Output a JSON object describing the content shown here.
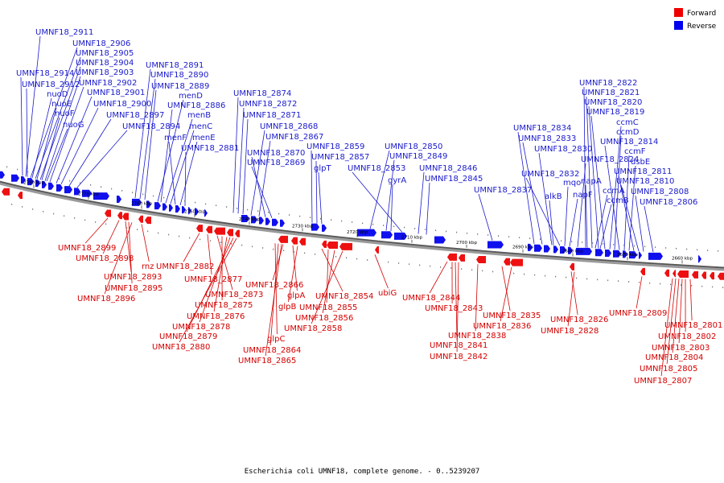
{
  "caption": "Escherichia coli UMNF18, complete genome. - 0..5239207",
  "legend": [
    {
      "label": "Forward",
      "color": "#ee0000"
    },
    {
      "label": "Reverse",
      "color": "#0000ee"
    }
  ],
  "ticks": [
    "2780 kbp",
    "2770 kbp",
    "2760 kbp",
    "2750 kbp",
    "2740 kbp",
    "2730 kbp",
    "2720 kbp",
    "2710 kbp",
    "2700 kbp",
    "2690 kbp",
    "2680 kbp",
    "2670 kbp",
    "2660 kbp"
  ],
  "reverse_labels": [
    "UMNF18_2911",
    "UMNF18_2906",
    "UMNF18_2905",
    "UMNF18_2904",
    "UMNF18_2914",
    "UMNF18_2903",
    "UMNF18_2912",
    "UMNF18_2902",
    "nuoD",
    "UMNF18_2901",
    "nuoE",
    "UMNF18_2900",
    "nuoF",
    "UMNF18_2897",
    "nuoG",
    "UMNF18_2894",
    "UMNF18_2891",
    "UMNF18_2890",
    "UMNF18_2889",
    "menD",
    "UMNF18_2886",
    "menB",
    "menC",
    "menF",
    "menE",
    "UMNF18_2881",
    "UMNF18_2874",
    "UMNF18_2872",
    "UMNF18_2871",
    "UMNF18_2868",
    "UMNF18_2867",
    "UMNF18_2870",
    "UMNF18_2869",
    "UMNF18_2859",
    "UMNF18_2857",
    "glpT",
    "UMNF18_2850",
    "UMNF18_2849",
    "UMNF18_2853",
    "gyrA",
    "UMNF18_2846",
    "UMNF18_2845",
    "UMNF18_2837",
    "UMNF18_2834",
    "UMNF18_2833",
    "UMNF18_2830",
    "UMNF18_2832",
    "alkB",
    "mqo",
    "napF",
    "UMNF18_2824",
    "napA",
    "ccmA",
    "ccmB",
    "UMNF18_2822",
    "UMNF18_2821",
    "UMNF18_2820",
    "UMNF18_2819",
    "ccmC",
    "ccmD",
    "UMNF18_2814",
    "ccmF",
    "dsbE",
    "UMNF18_2811",
    "UMNF18_2810",
    "UMNF18_2808",
    "UMNF18_2806"
  ],
  "forward_labels": [
    "UMNF18_2899",
    "UMNF18_2898",
    "UMNF18_2893",
    "rnz",
    "UMNF18_2895",
    "UMNF18_2896",
    "UMNF18_2882",
    "UMNF18_2877",
    "UMNF18_2873",
    "UMNF18_2875",
    "UMNF18_2876",
    "UMNF18_2878",
    "UMNF18_2879",
    "UMNF18_2880",
    "UMNF18_2866",
    "glpA",
    "glpB",
    "glpC",
    "UMNF18_2864",
    "UMNF18_2865",
    "UMNF18_2854",
    "UMNF18_2855",
    "UMNF18_2856",
    "UMNF18_2858",
    "ubiG",
    "UMNF18_2844",
    "UMNF18_2843",
    "UMNF18_2841",
    "UMNF18_2842",
    "UMNF18_2838",
    "UMNF18_2835",
    "UMNF18_2836",
    "UMNF18_2826",
    "UMNF18_2828",
    "UMNF18_2809",
    "UMNF18_2801",
    "UMNF18_2802",
    "UMNF18_2803",
    "UMNF18_2804",
    "UMNF18_2805",
    "UMNF18_2807"
  ]
}
